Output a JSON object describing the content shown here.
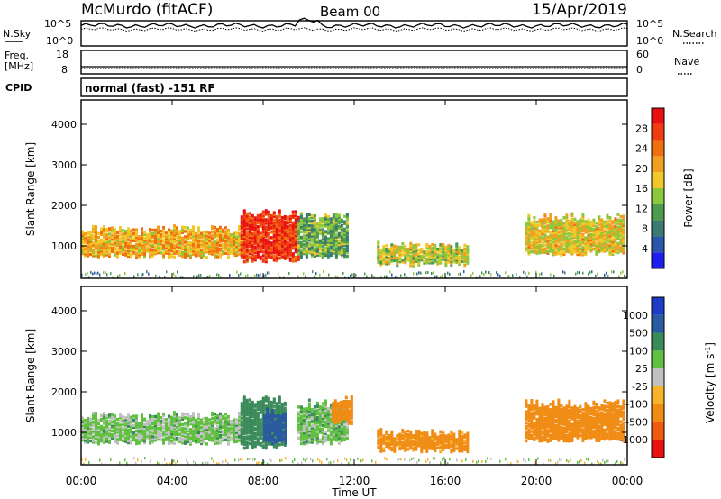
{
  "header": {
    "station": "McMurdo (fitACF)",
    "beam": "Beam 00",
    "date": "15/Apr/2019"
  },
  "noise_panel": {
    "left_label": "N.Sky",
    "right_label": "N.Search",
    "left_ticks": [
      "10^5",
      "10^0"
    ],
    "right_ticks": [
      "10^5",
      "10^0"
    ]
  },
  "freq_panel": {
    "left_label_1": "Freq.",
    "left_label_2": "[MHz]",
    "right_label": "Nave",
    "left_ticks": [
      "18",
      "8"
    ],
    "right_ticks": [
      "60",
      "0"
    ]
  },
  "cpid": {
    "label": "CPID",
    "value": "normal (fast) -151 RF"
  },
  "x_axis": {
    "label": "Time UT",
    "ticks": [
      "00:00",
      "04:00",
      "08:00",
      "12:00",
      "16:00",
      "20:00",
      "00:00"
    ]
  },
  "colors": {
    "power": [
      "#1e1ef0",
      "#2a55a8",
      "#3a7a70",
      "#4e9a4e",
      "#8cc83c",
      "#f0c828",
      "#f0a020",
      "#f07010",
      "#f03c10",
      "#e81010"
    ],
    "velocity": [
      "#e81010",
      "#f05a10",
      "#f08c14",
      "#f8b428",
      "#c0c0c0",
      "#60c040",
      "#3a8a5a",
      "#2a5aa0",
      "#1e3cc8"
    ]
  },
  "chart_data": [
    {
      "type": "line",
      "title": "",
      "xlabel": "",
      "ylabel": "N.Sky",
      "y_scale": "log",
      "ylim": [
        1,
        100000
      ],
      "x": [
        "00:00",
        "04:00",
        "08:00",
        "10:00",
        "12:00",
        "16:00",
        "20:00",
        "24:00"
      ],
      "series": [
        {
          "values": [
            30000,
            32000,
            33000,
            60000,
            36000,
            30000,
            32000,
            30000
          ]
        },
        {
          "values": [
            3000,
            3500,
            3200,
            3800,
            3400,
            3000,
            3300,
            3100
          ]
        }
      ]
    },
    {
      "type": "line",
      "xlabel": "",
      "ylabel": "Freq. [MHz]",
      "ylim": [
        8,
        18
      ],
      "x": [
        "00:00",
        "24:00"
      ],
      "series": [
        {
          "values": [
            9.5,
            9.5
          ]
        },
        {
          "values": [
            9.0,
            9.0
          ]
        }
      ]
    },
    {
      "type": "heatmap",
      "title": "",
      "xlabel": "Time UT",
      "ylabel": "Slant Range [km]",
      "colorbar_label": "Power [dB]",
      "colorbar_ticks": [
        4,
        8,
        12,
        16,
        20,
        24,
        28
      ],
      "colorbar_range": [
        0,
        32
      ],
      "y_ticks": [
        1000,
        2000,
        3000,
        4000
      ],
      "ylim": [
        200,
        4600
      ],
      "xlim": [
        "00:00",
        "24:00"
      ],
      "regions": [
        {
          "t_start": "00:00",
          "t_end": "07:00",
          "range_low": 700,
          "range_high": 1500,
          "value": 20
        },
        {
          "t_start": "07:00",
          "t_end": "09:30",
          "range_low": 600,
          "range_high": 1900,
          "value": 28
        },
        {
          "t_start": "09:30",
          "t_end": "11:40",
          "range_low": 700,
          "range_high": 1800,
          "value": 12
        },
        {
          "t_start": "13:00",
          "t_end": "17:00",
          "range_low": 500,
          "range_high": 1100,
          "value": 16
        },
        {
          "t_start": "19:30",
          "t_end": "23:50",
          "range_low": 750,
          "range_high": 1800,
          "value": 18
        }
      ]
    },
    {
      "type": "heatmap",
      "xlabel": "Time UT",
      "ylabel": "Slant Range [km]",
      "colorbar_label": "Velocity [m s^-1]",
      "colorbar_ticks": [
        1000,
        500,
        100,
        25,
        -25,
        -100,
        -500,
        -1000
      ],
      "y_ticks": [
        1000,
        2000,
        3000,
        4000
      ],
      "ylim": [
        200,
        4600
      ],
      "xlim": [
        "00:00",
        "24:00"
      ],
      "regions": [
        {
          "t_start": "00:00",
          "t_end": "07:00",
          "range_low": 700,
          "range_high": 1500,
          "value": 50
        },
        {
          "t_start": "07:00",
          "t_end": "09:00",
          "range_low": 600,
          "range_high": 1900,
          "value": 300
        },
        {
          "t_start": "08:00",
          "t_end": "09:00",
          "range_low": 700,
          "range_high": 1600,
          "value": 800
        },
        {
          "t_start": "09:30",
          "t_end": "11:40",
          "range_low": 700,
          "range_high": 1800,
          "value": 60
        },
        {
          "t_start": "11:00",
          "t_end": "11:50",
          "range_low": 1200,
          "range_high": 1900,
          "value": -200
        },
        {
          "t_start": "13:00",
          "t_end": "17:00",
          "range_low": 500,
          "range_high": 1100,
          "value": -150
        },
        {
          "t_start": "19:30",
          "t_end": "23:50",
          "range_low": 750,
          "range_high": 1800,
          "value": -300
        }
      ]
    }
  ],
  "labels": {
    "slant_range": "Slant Range [km]",
    "power_label": "Power [dB]",
    "velocity_label": "Velocity [m s",
    "velocity_sup": "-1",
    "velocity_close": "]"
  }
}
